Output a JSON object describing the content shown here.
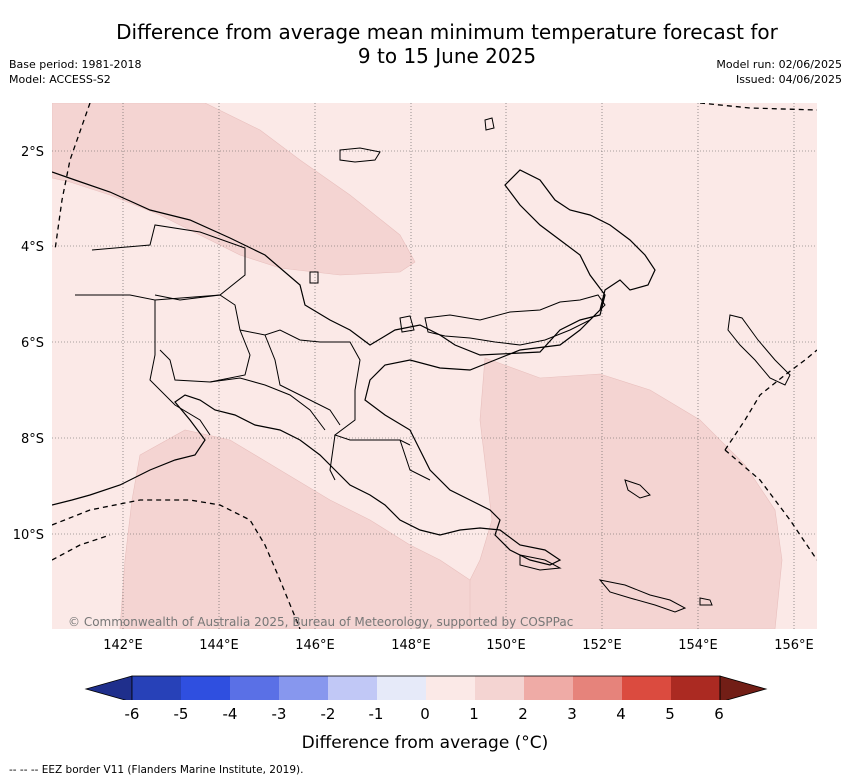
{
  "title_line1": "Difference from average mean minimum temperature forecast for",
  "title_line2": "9 to 15 June 2025",
  "meta_left": {
    "base_period": "Base period: 1981-2018",
    "model": "Model: ACCESS-S2"
  },
  "meta_right": {
    "model_run": "Model run: 02/06/2025",
    "issued": "Issued: 04/06/2025"
  },
  "map": {
    "lat_labels": [
      "2°S",
      "4°S",
      "6°S",
      "8°S",
      "10°S"
    ],
    "lon_labels": [
      "142°E",
      "144°E",
      "146°E",
      "148°E",
      "150°E",
      "152°E",
      "154°E",
      "156°E"
    ],
    "attribution": "© Commonwealth of Australia 2025, Bureau of Meteorology, supported by COSPPac",
    "colors": {
      "anomaly_0_1": "#fbe9e7",
      "anomaly_1_2": "#f4d4d2",
      "land_outline": "#000000"
    }
  },
  "colorbar": {
    "ticks": [
      "-6",
      "-5",
      "-4",
      "-3",
      "-2",
      "-1",
      "0",
      "1",
      "2",
      "3",
      "4",
      "5",
      "6"
    ],
    "colors": [
      "#1f2f8c",
      "#2741b8",
      "#2f4fe0",
      "#5a70e6",
      "#8797ee",
      "#c1c8f6",
      "#e6eaf9",
      "#fbe9e7",
      "#f4d4d2",
      "#efaba6",
      "#e6837b",
      "#db4b3f",
      "#ab2a22",
      "#721e16"
    ],
    "label": "Difference from average (°C)"
  },
  "footnote": "--  --  -- EEZ border V11 (Flanders Marine Institute, 2019)."
}
